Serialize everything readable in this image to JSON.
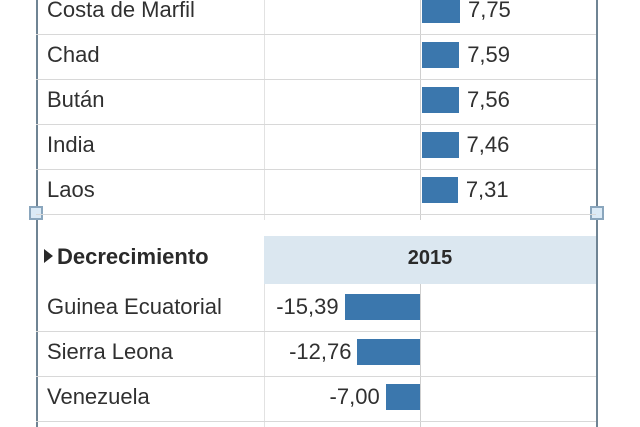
{
  "chart_data": [
    {
      "type": "bar",
      "categories": [
        "Costa de Marfil",
        "Chad",
        "Bután",
        "India",
        "Laos"
      ],
      "values": [
        7.75,
        7.59,
        7.56,
        7.46,
        7.31
      ],
      "value_labels": [
        "7,75",
        "7,59",
        "7,56",
        "7,46",
        "7,31"
      ],
      "bar_color": "#3b77ad"
    },
    {
      "type": "bar",
      "section_title": "Decrecimiento",
      "column_header": "2015",
      "categories": [
        "Guinea Ecuatorial",
        "Sierra Leona",
        "Venezuela"
      ],
      "values": [
        -15.39,
        -12.76,
        -7.0
      ],
      "value_labels": [
        "-15,39",
        "-12,76",
        "-7,00"
      ],
      "bar_color": "#3b77ad"
    }
  ]
}
